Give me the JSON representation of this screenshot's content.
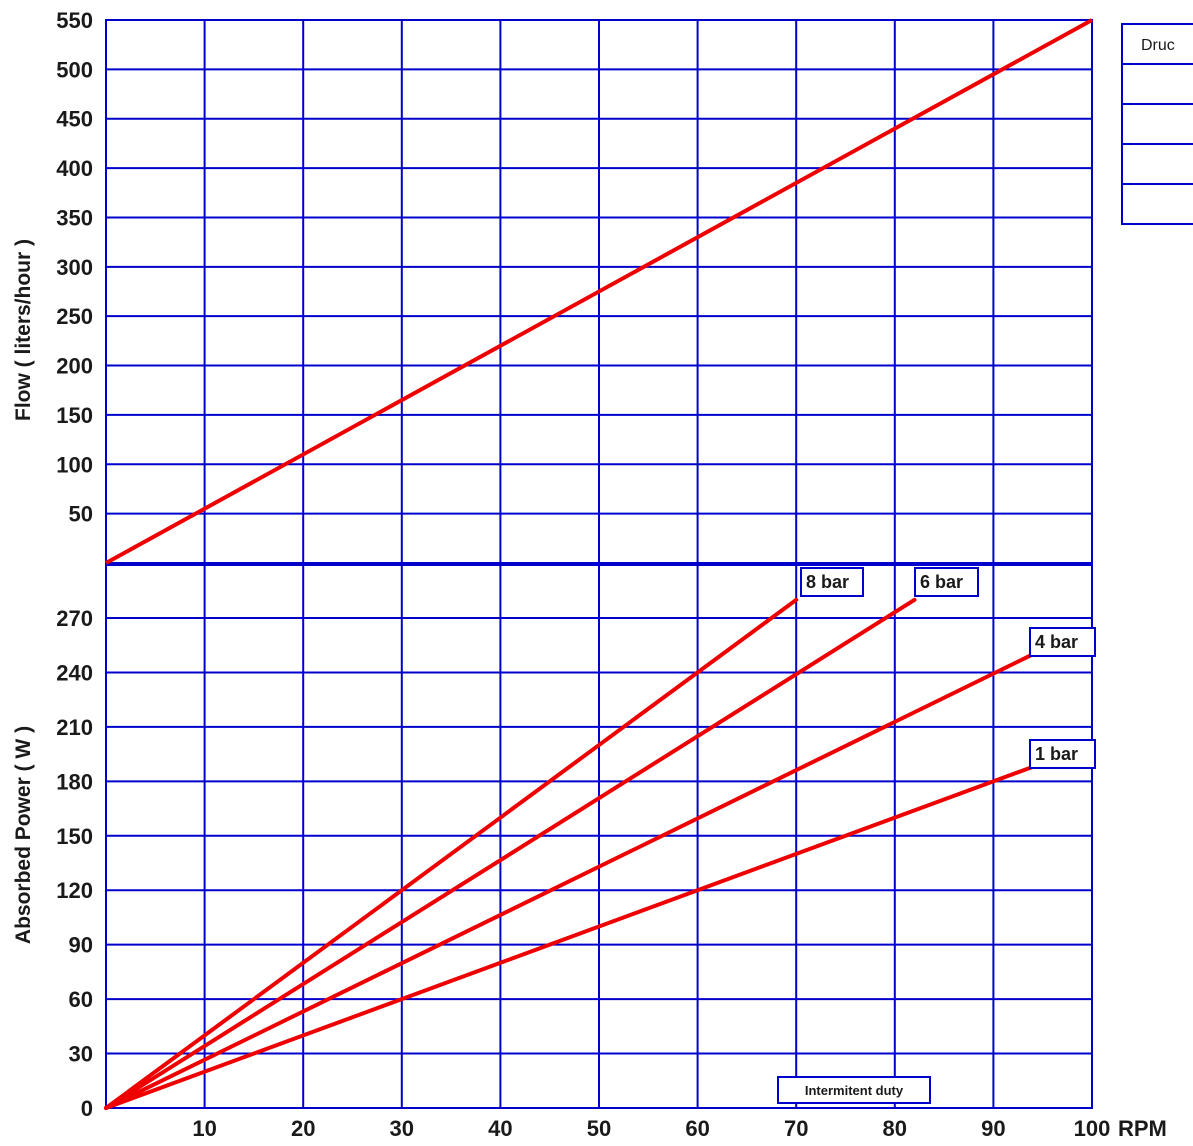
{
  "chart_data": [
    {
      "type": "line",
      "xlabel": "",
      "ylabel": "Flow ( liters/hour )",
      "xlim": [
        0,
        100
      ],
      "ylim": [
        0,
        550
      ],
      "yticks": [
        50,
        100,
        150,
        200,
        250,
        300,
        350,
        400,
        450,
        500,
        550
      ],
      "grid": true,
      "series": [
        {
          "x": [
            0,
            100
          ],
          "y": [
            0,
            550
          ]
        }
      ]
    },
    {
      "type": "line",
      "xlabel": "RPM",
      "ylabel": "Absorbed Power ( W )",
      "xlim": [
        0,
        100
      ],
      "ylim": [
        0,
        300
      ],
      "xticks": [
        10,
        20,
        30,
        40,
        50,
        60,
        70,
        80,
        90,
        100
      ],
      "yticks": [
        0,
        30,
        60,
        90,
        120,
        150,
        180,
        210,
        240,
        270
      ],
      "grid": true,
      "annotation": "Intermitent duty",
      "series": [
        {
          "name": "8 bar",
          "x": [
            0,
            70
          ],
          "y": [
            0,
            280
          ]
        },
        {
          "name": "6 bar",
          "x": [
            0,
            82
          ],
          "y": [
            0,
            280
          ]
        },
        {
          "name": "4 bar",
          "x": [
            0,
            94
          ],
          "y": [
            0,
            250
          ]
        },
        {
          "name": "1 bar",
          "x": [
            0,
            94
          ],
          "y": [
            0,
            188
          ]
        }
      ]
    }
  ],
  "side_table": {
    "header": "Druc",
    "rows": 4
  },
  "colors": {
    "grid": "#0000cc",
    "line": "#ee0000",
    "text": "#1a1a1a"
  }
}
